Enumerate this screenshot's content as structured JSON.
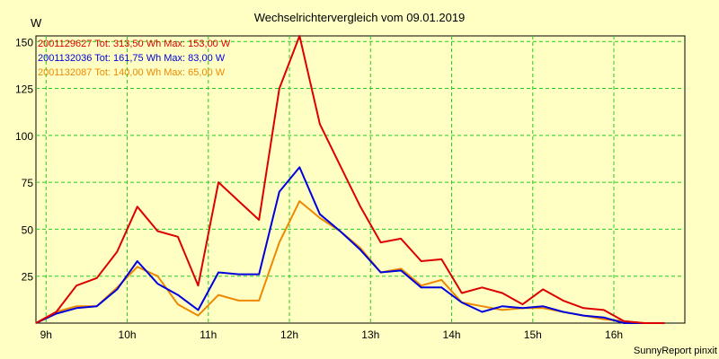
{
  "chart_data": {
    "type": "line",
    "title": "Wechselrichtervergleich vom 09.01.2019",
    "ylabel": "W",
    "xlabel": "",
    "ylim": [
      0,
      153
    ],
    "yticks": [
      25,
      50,
      75,
      100,
      125,
      150
    ],
    "xticks": [
      {
        "hour": 9,
        "label": "9h"
      },
      {
        "hour": 10,
        "label": "10h"
      },
      {
        "hour": 11,
        "label": "11h"
      },
      {
        "hour": 12,
        "label": "12h"
      },
      {
        "hour": 13,
        "label": "13h"
      },
      {
        "hour": 14,
        "label": "14h"
      },
      {
        "hour": 15,
        "label": "15h"
      },
      {
        "hour": 16,
        "label": "16h"
      }
    ],
    "grid": true,
    "legend_position": "top-left",
    "x": [
      8.875,
      9.125,
      9.375,
      9.625,
      9.875,
      10.125,
      10.375,
      10.625,
      10.875,
      11.125,
      11.375,
      11.625,
      11.875,
      12.125,
      12.375,
      12.625,
      12.875,
      13.125,
      13.375,
      13.625,
      13.875,
      14.125,
      14.375,
      14.625,
      14.875,
      15.125,
      15.375,
      15.625,
      15.875,
      16.125,
      16.375,
      16.625
    ],
    "series": [
      {
        "name": "2001129627",
        "legend": "2001129627 Tot: 313,50 Wh Max: 153,00 W",
        "color": "#dd0000",
        "values": [
          0,
          6,
          20,
          24,
          38,
          62,
          49,
          46,
          20,
          75,
          65,
          55,
          125,
          153,
          106,
          84,
          62,
          43,
          45,
          33,
          34,
          16,
          19,
          16,
          10,
          18,
          12,
          8,
          7,
          1,
          0,
          0
        ]
      },
      {
        "name": "2001132036",
        "legend": "2001132036 Tot: 161,75 Wh Max: 83,00 W",
        "color": "#0000dd",
        "values": [
          0,
          5,
          8,
          9,
          18,
          33,
          21,
          15,
          7,
          27,
          26,
          26,
          70,
          83,
          58,
          49,
          39,
          27,
          28,
          19,
          19,
          11,
          6,
          9,
          8,
          9,
          6,
          4,
          3,
          0,
          0,
          0
        ]
      },
      {
        "name": "2001132087",
        "legend": "2001132087 Tot: 140,00 Wh Max: 65,00 W",
        "color": "#ee8800",
        "values": [
          0,
          6,
          9,
          9,
          19,
          30,
          25,
          10,
          4,
          15,
          12,
          12,
          43,
          65,
          56,
          49,
          40,
          27,
          29,
          20,
          23,
          11,
          9,
          7,
          8,
          8,
          6,
          4,
          2,
          1,
          0,
          0
        ]
      }
    ],
    "credit": "SunnyReport pinxit"
  },
  "colors": {
    "background": "#ffffc4",
    "grid": "#22cc22",
    "frame": "#000000"
  }
}
